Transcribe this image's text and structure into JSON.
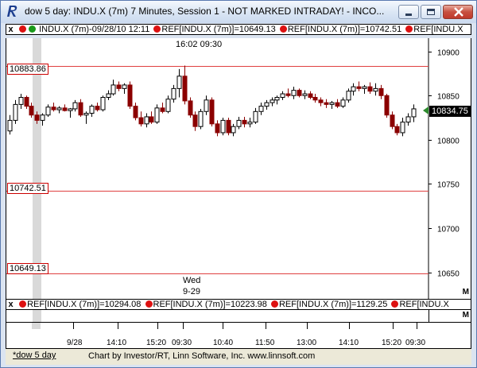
{
  "window": {
    "title": "dow 5 day: INDU.X (7m) 7 Minutes, Session 1 - NOT MARKED INTRADAY! - INCO..."
  },
  "top_info": {
    "close_glyph": "x",
    "symbol_text": "INDU.X (7m)-09/28/10 12:11",
    "refs": [
      "REF[INDU.X (7m)]=10649.13",
      "REF[INDU.X (7m)]=10742.51",
      "REF[INDU.X"
    ]
  },
  "bottom_info": {
    "close_glyph": "x",
    "refs": [
      "REF[INDU.X (7m)]=10294.08",
      "REF[INDU.X (7m)]=10223.98",
      "REF[INDU.X (7m)]=1129.25",
      "REF[INDU.X"
    ]
  },
  "crosshair": {
    "label": "16:02  09:30"
  },
  "day_marker": {
    "day": "Wed",
    "date": "9-29"
  },
  "last_price": "10834.75",
  "corner_m": "M",
  "ref_lines": [
    {
      "label": "10883.86",
      "value": 10883.86
    },
    {
      "label": "10742.51",
      "value": 10742.51
    },
    {
      "label": "10649.13",
      "value": 10649.13
    }
  ],
  "footer": {
    "tab": "*dow 5 day",
    "credit": "Chart by Investor/RT, Linn Software, Inc. www.linnsoft.com"
  },
  "colors": {
    "up": "#000000",
    "down": "#8b0000",
    "ref_line": "#e04040",
    "last_marker": "#2e8b2e"
  },
  "chart_data": {
    "type": "candlestick",
    "ylim": [
      10620,
      10915
    ],
    "yticks": [
      "10900",
      "10850",
      "10800",
      "10750",
      "10700",
      "10650"
    ],
    "ytick_values": [
      10900,
      10850,
      10800,
      10750,
      10700,
      10650
    ],
    "xticks": [
      "9/28",
      "14:10",
      "15:20",
      "09:30",
      "10:40",
      "11:50",
      "13:00",
      "14:10",
      "15:20",
      "09:30"
    ],
    "candles": [
      {
        "o": 10810,
        "h": 10828,
        "l": 10806,
        "c": 10822
      },
      {
        "o": 10822,
        "h": 10845,
        "l": 10818,
        "c": 10840
      },
      {
        "o": 10840,
        "h": 10852,
        "l": 10835,
        "c": 10848
      },
      {
        "o": 10848,
        "h": 10850,
        "l": 10835,
        "c": 10838
      },
      {
        "o": 10838,
        "h": 10842,
        "l": 10825,
        "c": 10828
      },
      {
        "o": 10828,
        "h": 10832,
        "l": 10818,
        "c": 10822
      },
      {
        "o": 10822,
        "h": 10830,
        "l": 10816,
        "c": 10828
      },
      {
        "o": 10828,
        "h": 10840,
        "l": 10826,
        "c": 10837
      },
      {
        "o": 10837,
        "h": 10842,
        "l": 10832,
        "c": 10834
      },
      {
        "o": 10834,
        "h": 10838,
        "l": 10830,
        "c": 10836
      },
      {
        "o": 10836,
        "h": 10840,
        "l": 10832,
        "c": 10833
      },
      {
        "o": 10833,
        "h": 10836,
        "l": 10825,
        "c": 10835
      },
      {
        "o": 10835,
        "h": 10845,
        "l": 10832,
        "c": 10842
      },
      {
        "o": 10842,
        "h": 10846,
        "l": 10826,
        "c": 10828
      },
      {
        "o": 10828,
        "h": 10832,
        "l": 10818,
        "c": 10830
      },
      {
        "o": 10830,
        "h": 10840,
        "l": 10826,
        "c": 10838
      },
      {
        "o": 10838,
        "h": 10842,
        "l": 10832,
        "c": 10834
      },
      {
        "o": 10834,
        "h": 10850,
        "l": 10832,
        "c": 10848
      },
      {
        "o": 10848,
        "h": 10856,
        "l": 10845,
        "c": 10852
      },
      {
        "o": 10852,
        "h": 10868,
        "l": 10850,
        "c": 10862
      },
      {
        "o": 10862,
        "h": 10866,
        "l": 10855,
        "c": 10858
      },
      {
        "o": 10858,
        "h": 10864,
        "l": 10852,
        "c": 10862
      },
      {
        "o": 10862,
        "h": 10866,
        "l": 10835,
        "c": 10838
      },
      {
        "o": 10838,
        "h": 10842,
        "l": 10822,
        "c": 10825
      },
      {
        "o": 10825,
        "h": 10832,
        "l": 10815,
        "c": 10818
      },
      {
        "o": 10818,
        "h": 10830,
        "l": 10814,
        "c": 10826
      },
      {
        "o": 10826,
        "h": 10832,
        "l": 10818,
        "c": 10820
      },
      {
        "o": 10820,
        "h": 10840,
        "l": 10818,
        "c": 10836
      },
      {
        "o": 10836,
        "h": 10842,
        "l": 10830,
        "c": 10832
      },
      {
        "o": 10832,
        "h": 10850,
        "l": 10830,
        "c": 10846
      },
      {
        "o": 10846,
        "h": 10862,
        "l": 10842,
        "c": 10858
      },
      {
        "o": 10858,
        "h": 10880,
        "l": 10848,
        "c": 10872
      },
      {
        "o": 10872,
        "h": 10884,
        "l": 10840,
        "c": 10844
      },
      {
        "o": 10844,
        "h": 10848,
        "l": 10825,
        "c": 10828
      },
      {
        "o": 10828,
        "h": 10832,
        "l": 10810,
        "c": 10815
      },
      {
        "o": 10815,
        "h": 10835,
        "l": 10812,
        "c": 10832
      },
      {
        "o": 10832,
        "h": 10850,
        "l": 10828,
        "c": 10845
      },
      {
        "o": 10845,
        "h": 10848,
        "l": 10815,
        "c": 10818
      },
      {
        "o": 10818,
        "h": 10822,
        "l": 10804,
        "c": 10808
      },
      {
        "o": 10808,
        "h": 10825,
        "l": 10805,
        "c": 10822
      },
      {
        "o": 10822,
        "h": 10825,
        "l": 10805,
        "c": 10808
      },
      {
        "o": 10808,
        "h": 10818,
        "l": 10804,
        "c": 10815
      },
      {
        "o": 10815,
        "h": 10826,
        "l": 10812,
        "c": 10822
      },
      {
        "o": 10822,
        "h": 10826,
        "l": 10814,
        "c": 10818
      },
      {
        "o": 10818,
        "h": 10825,
        "l": 10814,
        "c": 10820
      },
      {
        "o": 10820,
        "h": 10836,
        "l": 10818,
        "c": 10832
      },
      {
        "o": 10832,
        "h": 10842,
        "l": 10828,
        "c": 10838
      },
      {
        "o": 10838,
        "h": 10845,
        "l": 10834,
        "c": 10842
      },
      {
        "o": 10842,
        "h": 10848,
        "l": 10838,
        "c": 10845
      },
      {
        "o": 10845,
        "h": 10850,
        "l": 10840,
        "c": 10848
      },
      {
        "o": 10848,
        "h": 10855,
        "l": 10845,
        "c": 10852
      },
      {
        "o": 10852,
        "h": 10858,
        "l": 10848,
        "c": 10850
      },
      {
        "o": 10850,
        "h": 10860,
        "l": 10846,
        "c": 10856
      },
      {
        "o": 10856,
        "h": 10858,
        "l": 10848,
        "c": 10850
      },
      {
        "o": 10850,
        "h": 10856,
        "l": 10846,
        "c": 10852
      },
      {
        "o": 10852,
        "h": 10855,
        "l": 10846,
        "c": 10848
      },
      {
        "o": 10848,
        "h": 10852,
        "l": 10842,
        "c": 10845
      },
      {
        "o": 10845,
        "h": 10848,
        "l": 10838,
        "c": 10842
      },
      {
        "o": 10842,
        "h": 10846,
        "l": 10836,
        "c": 10840
      },
      {
        "o": 10840,
        "h": 10844,
        "l": 10835,
        "c": 10842
      },
      {
        "o": 10842,
        "h": 10846,
        "l": 10836,
        "c": 10838
      },
      {
        "o": 10838,
        "h": 10848,
        "l": 10836,
        "c": 10845
      },
      {
        "o": 10845,
        "h": 10858,
        "l": 10842,
        "c": 10855
      },
      {
        "o": 10855,
        "h": 10864,
        "l": 10850,
        "c": 10860
      },
      {
        "o": 10860,
        "h": 10866,
        "l": 10855,
        "c": 10858
      },
      {
        "o": 10858,
        "h": 10862,
        "l": 10852,
        "c": 10860
      },
      {
        "o": 10860,
        "h": 10865,
        "l": 10852,
        "c": 10855
      },
      {
        "o": 10855,
        "h": 10864,
        "l": 10850,
        "c": 10858
      },
      {
        "o": 10858,
        "h": 10862,
        "l": 10846,
        "c": 10850
      },
      {
        "o": 10850,
        "h": 10852,
        "l": 10825,
        "c": 10828
      },
      {
        "o": 10828,
        "h": 10832,
        "l": 10812,
        "c": 10815
      },
      {
        "o": 10815,
        "h": 10818,
        "l": 10805,
        "c": 10808
      },
      {
        "o": 10808,
        "h": 10825,
        "l": 10804,
        "c": 10820
      },
      {
        "o": 10820,
        "h": 10830,
        "l": 10816,
        "c": 10826
      },
      {
        "o": 10826,
        "h": 10840,
        "l": 10820,
        "c": 10835
      }
    ]
  }
}
